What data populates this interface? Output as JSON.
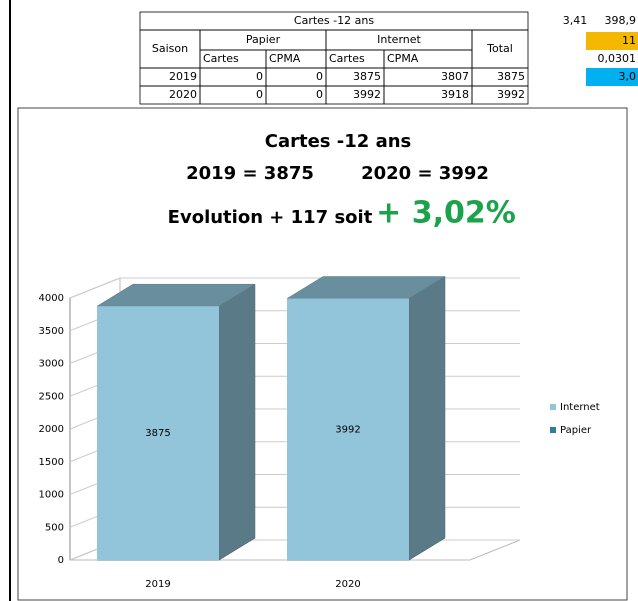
{
  "table": {
    "title": "Cartes -12 ans",
    "saison": "Saison",
    "papier": "Papier",
    "internet": "Internet",
    "total": "Total",
    "subheaders": [
      "Cartes",
      "CPMA",
      "Cartes",
      "CPMA"
    ],
    "rows": [
      [
        "2019",
        0,
        0,
        3875,
        3807,
        3875
      ],
      [
        "2020",
        0,
        0,
        3992,
        3918,
        3992
      ]
    ],
    "side": [
      "3,41",
      "398,9",
      "11",
      "0,0301",
      "3,0"
    ]
  },
  "chart_data": {
    "type": "bar",
    "stacked": true,
    "title": "Cartes -12 ans",
    "subtitle_left": "2019 = 3875",
    "subtitle_right": "2020 = 3992",
    "annotation": "Evolution  + 117 soit",
    "annotation_highlight": "+ 3,02%",
    "categories": [
      "2019",
      "2020"
    ],
    "series": [
      {
        "name": "Papier",
        "color": "#2e7e9a",
        "values": [
          0,
          0
        ]
      },
      {
        "name": "Internet",
        "color": "#92c5da",
        "values": [
          3875,
          3992
        ]
      }
    ],
    "ylim": [
      0,
      4000
    ],
    "yticks": [
      0,
      500,
      1000,
      1500,
      2000,
      2500,
      3000,
      3500,
      4000
    ],
    "grid": true,
    "legend": "right"
  }
}
